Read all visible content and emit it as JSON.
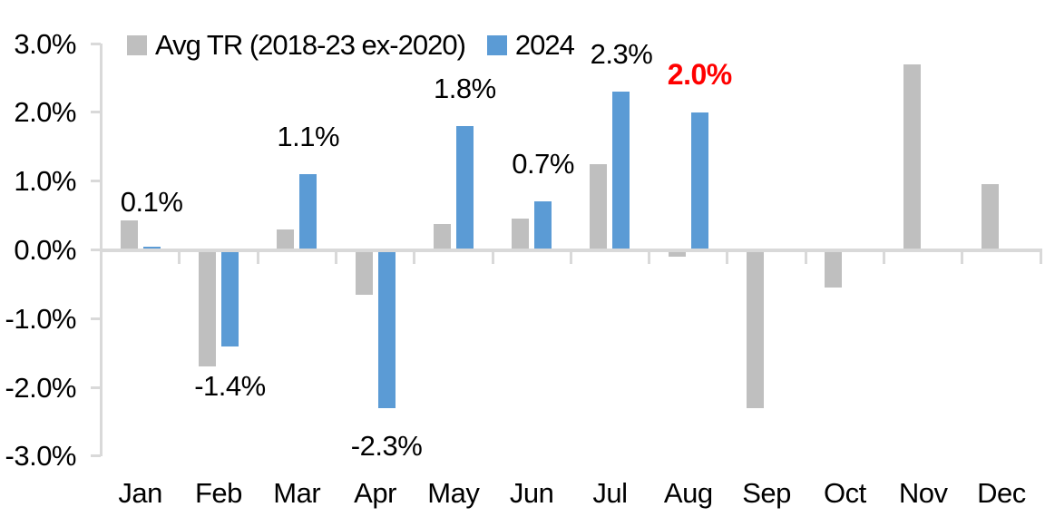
{
  "chart_data": {
    "type": "bar",
    "title": "",
    "categories": [
      "Jan",
      "Feb",
      "Mar",
      "Apr",
      "May",
      "Jun",
      "Jul",
      "Aug",
      "Sep",
      "Oct",
      "Nov",
      "Dec"
    ],
    "series": [
      {
        "name": "Avg TR (2018-23 ex-2020)",
        "color": "#BFBFBF",
        "values": [
          0.43,
          -1.7,
          0.3,
          -0.65,
          0.37,
          0.46,
          1.25,
          -0.1,
          -2.3,
          -0.55,
          2.7,
          0.95
        ]
      },
      {
        "name": "2024",
        "color": "#5B9BD5",
        "values": [
          0.05,
          -1.4,
          1.1,
          -2.3,
          1.8,
          0.7,
          2.3,
          2.0,
          null,
          null,
          null,
          null
        ],
        "data_labels": [
          "0.1%",
          "-1.4%",
          "1.1%",
          "-2.3%",
          "1.8%",
          "0.7%",
          "2.3%",
          "2.0%",
          null,
          null,
          null,
          null
        ],
        "highlight_label_index": 7,
        "highlight_label_color": "#FF0000"
      }
    ],
    "y_axis": {
      "tick_labels": [
        "3.0%",
        "2.0%",
        "1.0%",
        "0.0%",
        "-1.0%",
        "-2.0%",
        "-3.0%"
      ],
      "tick_values": [
        3,
        2,
        1,
        0,
        -1,
        -2,
        -3
      ],
      "min": -3.0,
      "max": 3.0
    },
    "xlabel": "",
    "ylabel": "",
    "legend_position": "top",
    "grid": false,
    "axis_color": "#D9D9D9",
    "label_color": "#000000"
  }
}
